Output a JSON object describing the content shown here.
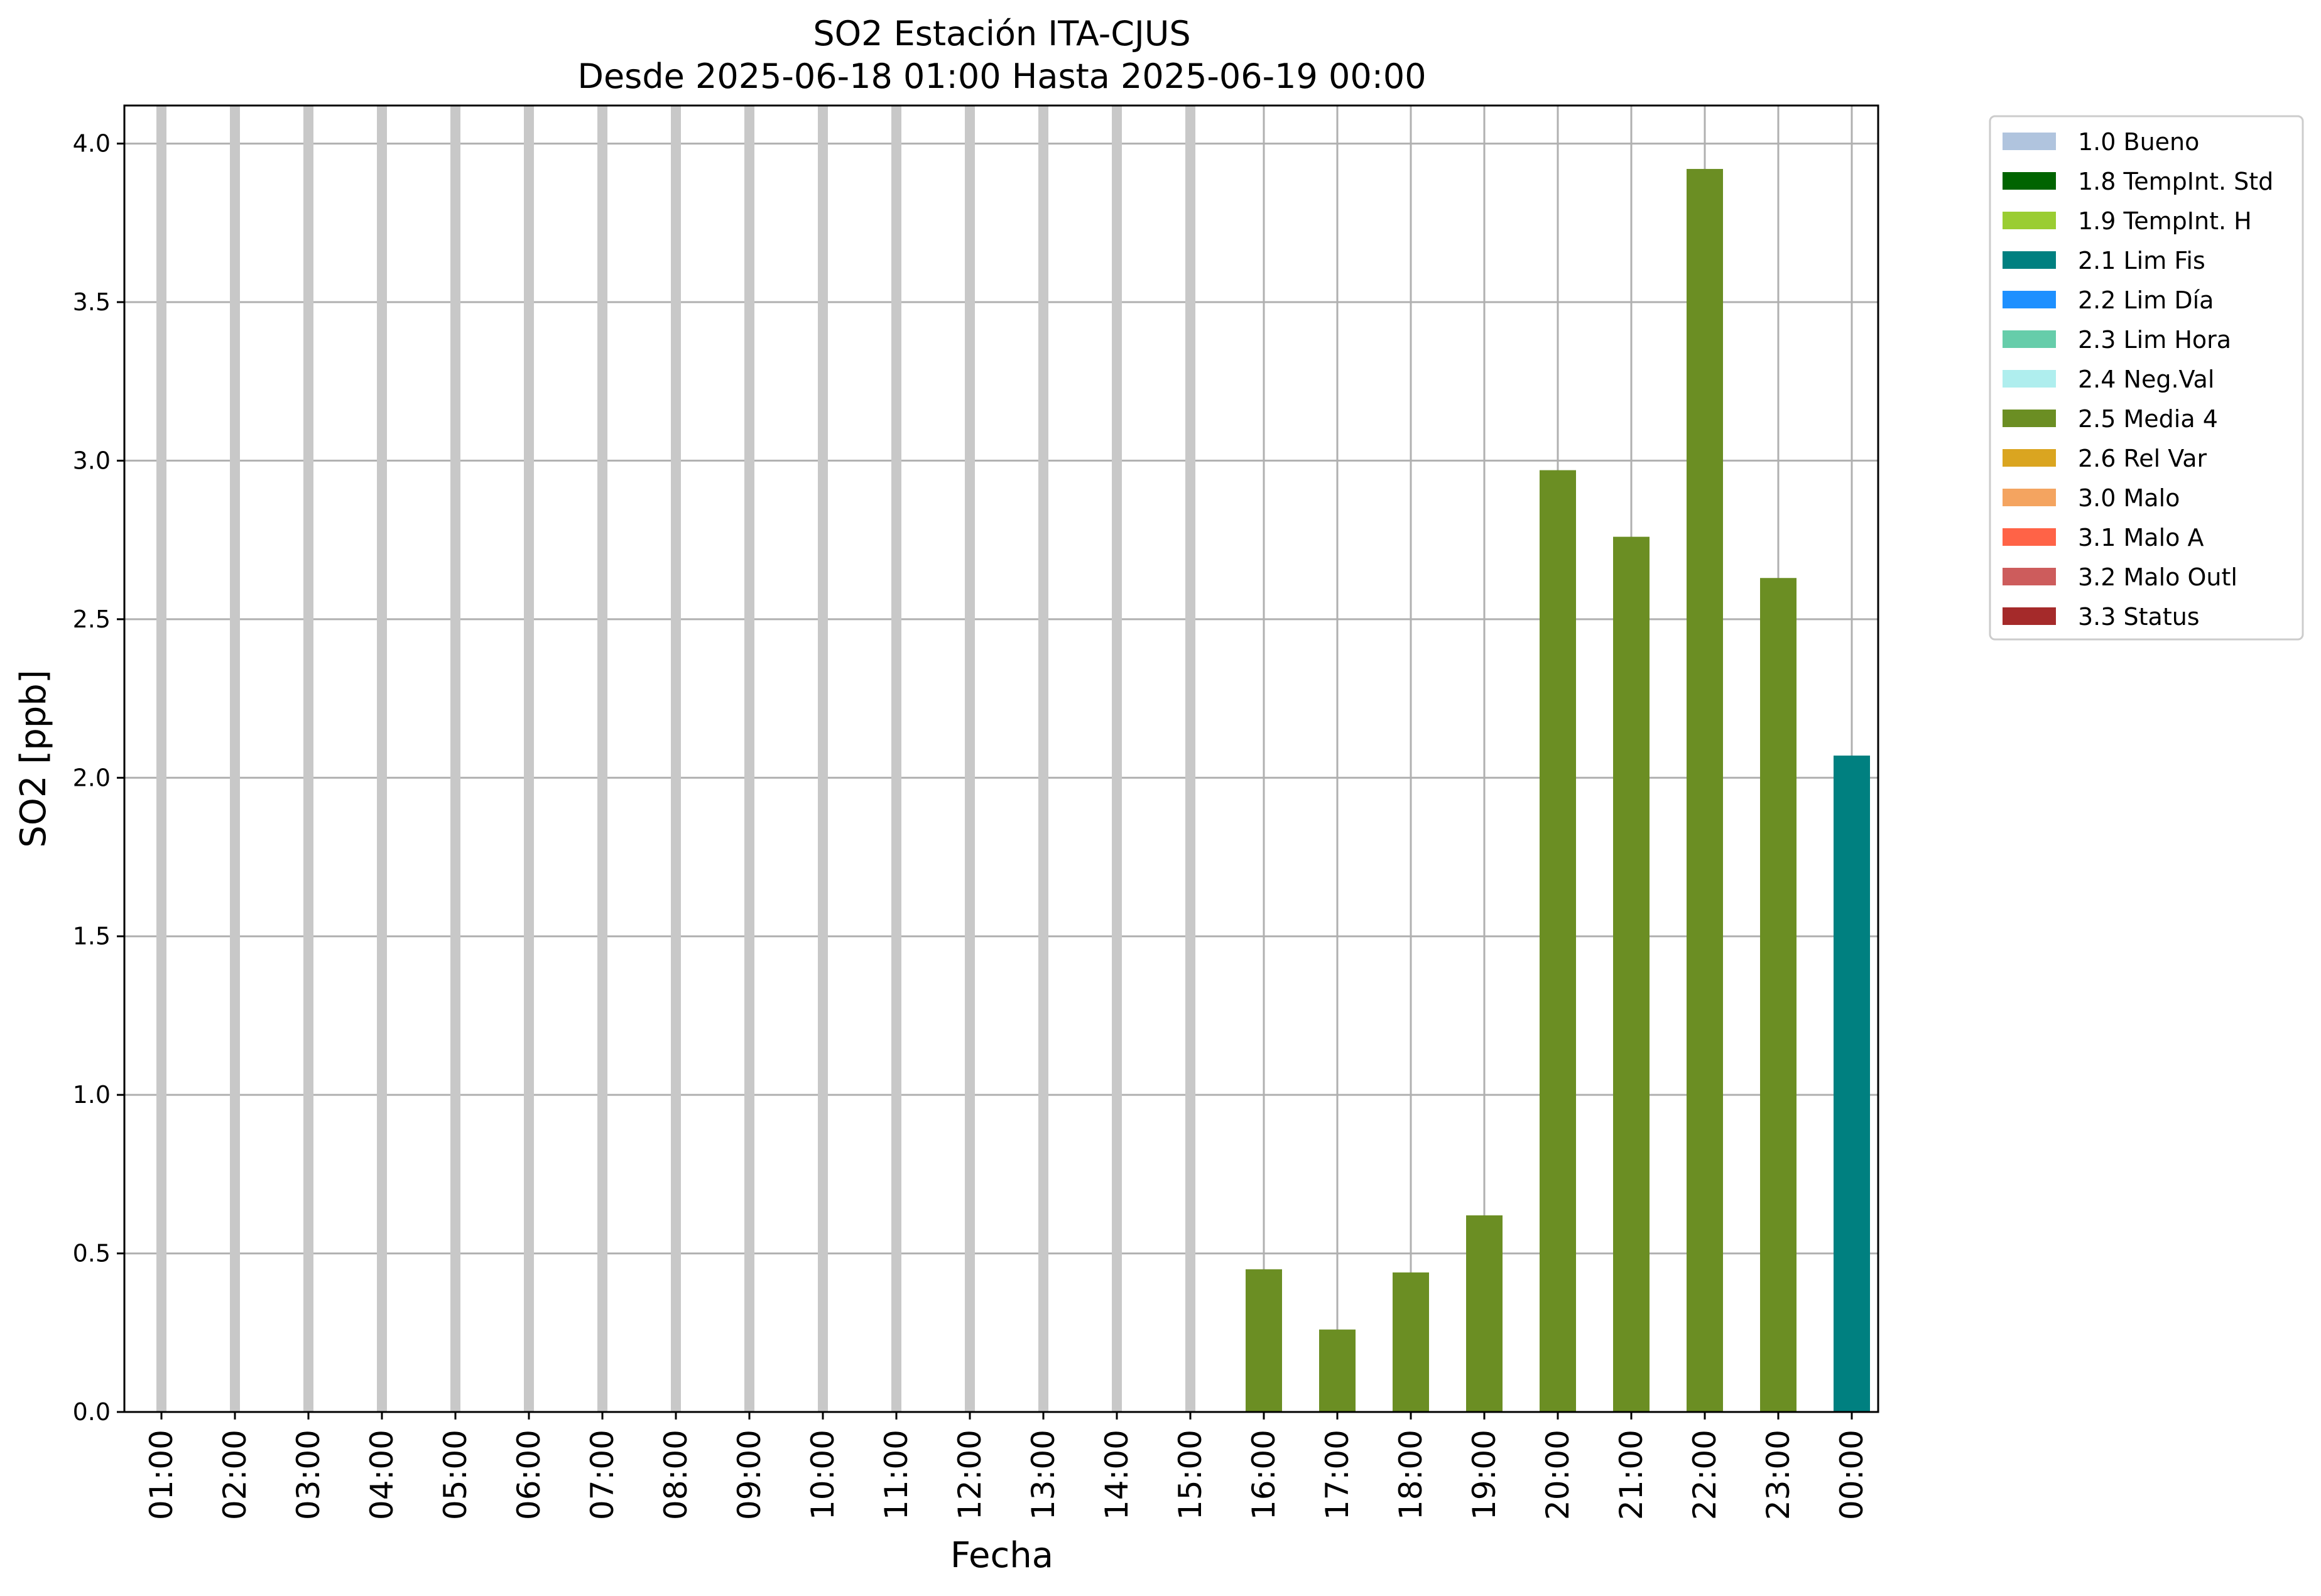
{
  "chart_data": {
    "type": "bar",
    "title": "SO2 Estación ITA-CJUS",
    "subtitle": "Desde 2025-06-18 01:00 Hasta 2025-06-19 00:00",
    "xlabel": "Fecha",
    "ylabel": "SO2 [ppb]",
    "ylim": [
      0,
      4.12
    ],
    "yticks": [
      "0.0",
      "0.5",
      "1.0",
      "1.5",
      "2.0",
      "2.5",
      "3.0",
      "3.5",
      "4.0"
    ],
    "grid": true,
    "legend_position": "outside-top-right",
    "categories": [
      "01:00",
      "02:00",
      "03:00",
      "04:00",
      "05:00",
      "06:00",
      "07:00",
      "08:00",
      "09:00",
      "10:00",
      "11:00",
      "12:00",
      "13:00",
      "14:00",
      "15:00",
      "16:00",
      "17:00",
      "18:00",
      "19:00",
      "20:00",
      "21:00",
      "22:00",
      "23:00",
      "00:00"
    ],
    "values": [
      null,
      null,
      null,
      null,
      null,
      null,
      null,
      null,
      null,
      null,
      null,
      null,
      null,
      null,
      null,
      0.45,
      0.26,
      0.44,
      0.62,
      2.97,
      2.76,
      3.92,
      2.63,
      2.07
    ],
    "flags": [
      null,
      null,
      null,
      null,
      null,
      null,
      null,
      null,
      null,
      null,
      null,
      null,
      null,
      null,
      null,
      "2.5 Media 4",
      "2.5 Media 4",
      "2.5 Media 4",
      "2.5 Media 4",
      "2.5 Media 4",
      "2.5 Media 4",
      "2.5 Media 4",
      "2.5 Media 4",
      "2.1 Lim Fis"
    ],
    "missing_marker_color": "#c8c8c8",
    "legend": [
      {
        "label": "1.0 Bueno",
        "color": "#b0c4de"
      },
      {
        "label": "1.8 TempInt. Std",
        "color": "#006400"
      },
      {
        "label": "1.9 TempInt. H",
        "color": "#9acd32"
      },
      {
        "label": "2.1 Lim Fis",
        "color": "#008080"
      },
      {
        "label": "2.2 Lim Día",
        "color": "#1e90ff"
      },
      {
        "label": "2.3 Lim Hora",
        "color": "#66cdaa"
      },
      {
        "label": "2.4 Neg.Val",
        "color": "#afeeee"
      },
      {
        "label": "2.5 Media 4",
        "color": "#6b8e23"
      },
      {
        "label": "2.6 Rel Var",
        "color": "#daa520"
      },
      {
        "label": "3.0 Malo",
        "color": "#f4a460"
      },
      {
        "label": "3.1 Malo A",
        "color": "#ff6347"
      },
      {
        "label": "3.2 Malo Outl",
        "color": "#cd5c5c"
      },
      {
        "label": "3.3 Status",
        "color": "#a52a2a"
      }
    ]
  }
}
